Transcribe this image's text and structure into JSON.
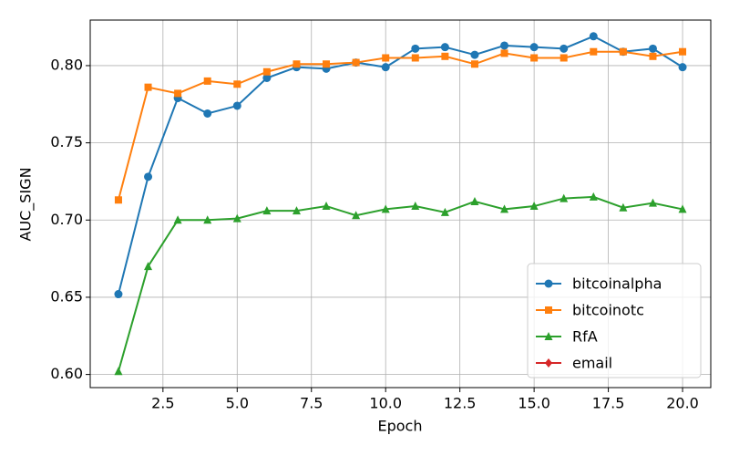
{
  "chart_data": {
    "type": "line",
    "xlabel": "Epoch",
    "ylabel": "AUC_SIGN",
    "x": [
      1,
      2,
      3,
      4,
      5,
      6,
      7,
      8,
      9,
      10,
      11,
      12,
      13,
      14,
      15,
      16,
      17,
      18,
      19,
      20
    ],
    "series": [
      {
        "name": "bitcoinalpha",
        "color": "#1f77b4",
        "marker": "circle",
        "values": [
          0.652,
          0.728,
          0.779,
          0.769,
          0.774,
          0.792,
          0.799,
          0.798,
          0.802,
          0.799,
          0.811,
          0.812,
          0.807,
          0.813,
          0.812,
          0.811,
          0.819,
          0.809,
          0.811,
          0.799
        ]
      },
      {
        "name": "bitcoinotc",
        "color": "#ff7f0e",
        "marker": "square",
        "values": [
          0.713,
          0.786,
          0.782,
          0.79,
          0.788,
          0.796,
          0.801,
          0.801,
          0.802,
          0.805,
          0.805,
          0.806,
          0.801,
          0.808,
          0.805,
          0.805,
          0.809,
          0.809,
          0.806,
          0.809
        ]
      },
      {
        "name": "RfA",
        "color": "#2ca02c",
        "marker": "triangle",
        "values": [
          0.602,
          0.67,
          0.7,
          0.7,
          0.701,
          0.706,
          0.706,
          0.709,
          0.703,
          0.707,
          0.709,
          0.705,
          0.712,
          0.707,
          0.709,
          0.714,
          0.715,
          0.708,
          0.711,
          0.707
        ]
      },
      {
        "name": "email",
        "color": "#d62728",
        "marker": "diamond",
        "values": [
          null,
          null,
          null,
          null,
          null,
          null,
          null,
          null,
          null,
          null,
          null,
          null,
          null,
          null,
          null,
          null,
          null,
          null,
          null,
          null
        ]
      }
    ],
    "xlim": [
      0.05,
      20.95
    ],
    "ylim": [
      0.5915,
      0.8295
    ],
    "xticks": [
      2.5,
      {
        "value": 5,
        "label": "5.0"
      },
      7.5,
      {
        "value": 10,
        "label": "10.0"
      },
      12.5,
      {
        "value": 15,
        "label": "15.0"
      },
      17.5,
      {
        "value": 20,
        "label": "20.0"
      }
    ],
    "yticks": [
      {
        "value": 0.6,
        "label": "0.60"
      },
      0.65,
      {
        "value": 0.7,
        "label": "0.70"
      },
      0.75,
      {
        "value": 0.8,
        "label": "0.80"
      }
    ],
    "grid": true,
    "legend": "lower right"
  }
}
